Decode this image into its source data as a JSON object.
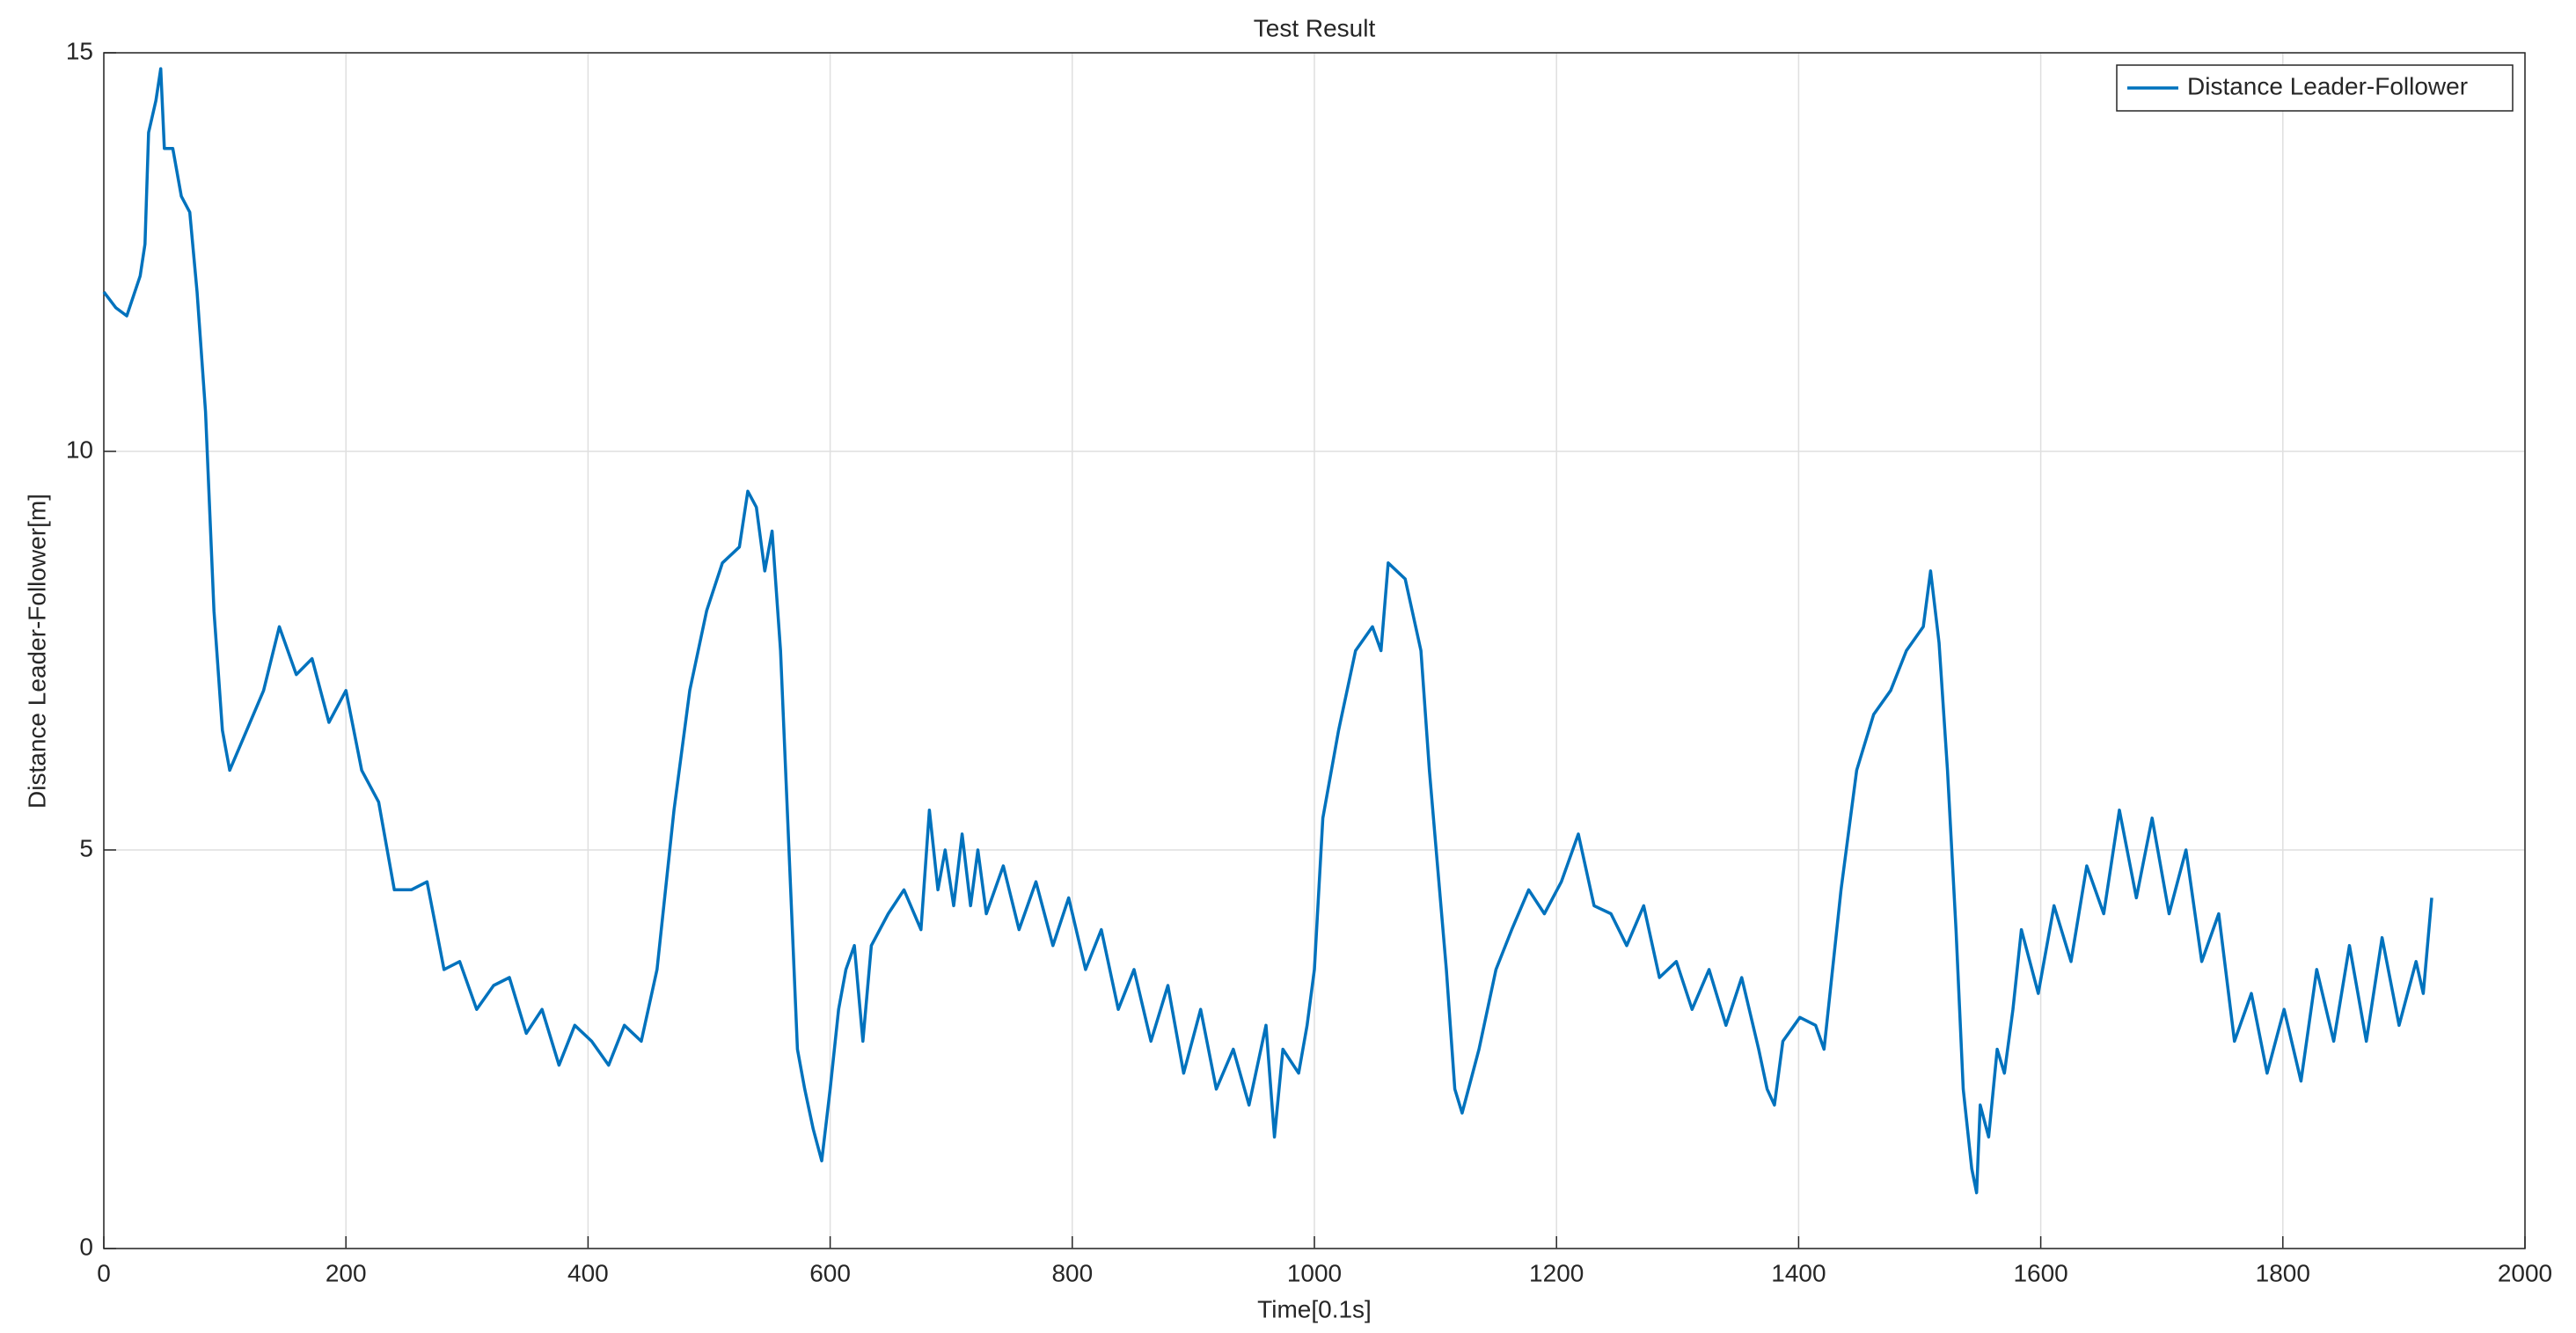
{
  "chart_data": {
    "type": "line",
    "title": "Test Result",
    "x_label": "Time[0.1s]",
    "y_label": "Distance Leader-Follower[m]",
    "x": [
      0,
      10,
      19,
      30,
      34,
      37,
      43,
      47,
      50,
      57,
      64,
      71,
      77,
      84,
      91,
      98,
      104,
      118,
      132,
      145,
      159,
      172,
      186,
      200,
      213,
      227,
      240,
      254,
      267,
      281,
      294,
      308,
      322,
      335,
      349,
      362,
      376,
      389,
      403,
      417,
      430,
      444,
      457,
      471,
      484,
      498,
      511,
      525,
      532,
      539,
      546,
      552,
      559,
      566,
      573,
      579,
      586,
      593,
      600,
      607,
      613,
      620,
      627,
      634,
      648,
      661,
      675,
      682,
      689,
      695,
      702,
      709,
      716,
      722,
      729,
      743,
      756,
      770,
      784,
      797,
      811,
      824,
      838,
      851,
      865,
      879,
      892,
      906,
      919,
      933,
      946,
      960,
      967,
      974,
      987,
      994,
      1000,
      1007,
      1020,
      1034,
      1048,
      1055,
      1061,
      1075,
      1088,
      1095,
      1109,
      1116,
      1122,
      1136,
      1150,
      1163,
      1177,
      1190,
      1204,
      1218,
      1231,
      1245,
      1258,
      1272,
      1285,
      1299,
      1312,
      1326,
      1340,
      1353,
      1367,
      1374,
      1380,
      1387,
      1401,
      1414,
      1421,
      1435,
      1448,
      1462,
      1476,
      1489,
      1503,
      1509,
      1516,
      1523,
      1530,
      1536,
      1543,
      1547,
      1550,
      1557,
      1564,
      1570,
      1577,
      1584,
      1598,
      1611,
      1625,
      1638,
      1652,
      1665,
      1679,
      1692,
      1706,
      1720,
      1733,
      1747,
      1760,
      1774,
      1787,
      1801,
      1815,
      1828,
      1842,
      1855,
      1869,
      1882,
      1896,
      1910,
      1916,
      1923
    ],
    "series": [
      {
        "name": "Distance Leader-Follower",
        "color": "#0072bd",
        "values": [
          12.0,
          11.8,
          11.7,
          12.2,
          12.6,
          14.0,
          14.4,
          14.8,
          13.8,
          13.8,
          13.2,
          13.0,
          12.0,
          10.5,
          8.0,
          6.5,
          6.0,
          6.5,
          7.0,
          7.8,
          7.2,
          7.4,
          6.6,
          7.0,
          6.0,
          5.6,
          4.5,
          4.5,
          4.6,
          3.5,
          3.6,
          3.0,
          3.3,
          3.4,
          2.7,
          3.0,
          2.3,
          2.8,
          2.6,
          2.3,
          2.8,
          2.6,
          3.5,
          5.5,
          7.0,
          8.0,
          8.6,
          8.8,
          9.5,
          9.3,
          8.5,
          9.0,
          7.5,
          5.0,
          2.5,
          2.0,
          1.5,
          1.1,
          2.0,
          3.0,
          3.5,
          3.8,
          2.6,
          3.8,
          4.2,
          4.5,
          4.0,
          5.5,
          4.5,
          5.0,
          4.3,
          5.2,
          4.3,
          5.0,
          4.2,
          4.8,
          4.0,
          4.6,
          3.8,
          4.4,
          3.5,
          4.0,
          3.0,
          3.5,
          2.6,
          3.3,
          2.2,
          3.0,
          2.0,
          2.5,
          1.8,
          2.8,
          1.4,
          2.5,
          2.2,
          2.8,
          3.5,
          5.4,
          6.5,
          7.5,
          7.8,
          7.5,
          8.6,
          8.4,
          7.5,
          6.0,
          3.5,
          2.0,
          1.7,
          2.5,
          3.5,
          4.0,
          4.5,
          4.2,
          4.6,
          5.2,
          4.3,
          4.2,
          3.8,
          4.3,
          3.4,
          3.6,
          3.0,
          3.5,
          2.8,
          3.4,
          2.5,
          2.0,
          1.8,
          2.6,
          2.9,
          2.8,
          2.5,
          4.5,
          6.0,
          6.7,
          7.0,
          7.5,
          7.8,
          8.5,
          7.6,
          6.0,
          4.0,
          2.0,
          1.0,
          0.7,
          1.8,
          1.4,
          2.5,
          2.2,
          3.0,
          4.0,
          3.2,
          4.3,
          3.6,
          4.8,
          4.2,
          5.5,
          4.4,
          5.4,
          4.2,
          5.0,
          3.6,
          4.2,
          2.6,
          3.2,
          2.2,
          3.0,
          2.1,
          3.5,
          2.6,
          3.8,
          2.6,
          3.9,
          2.8,
          3.6,
          3.2,
          4.4
        ]
      }
    ],
    "xlim": [
      0,
      2000
    ],
    "xticks": [
      0,
      200,
      400,
      600,
      800,
      1000,
      1200,
      1400,
      1600,
      1800,
      2000
    ],
    "ylim": [
      0,
      15
    ],
    "yticks": [
      0,
      5,
      10,
      15
    ],
    "grid": true,
    "legend": "top-right"
  }
}
